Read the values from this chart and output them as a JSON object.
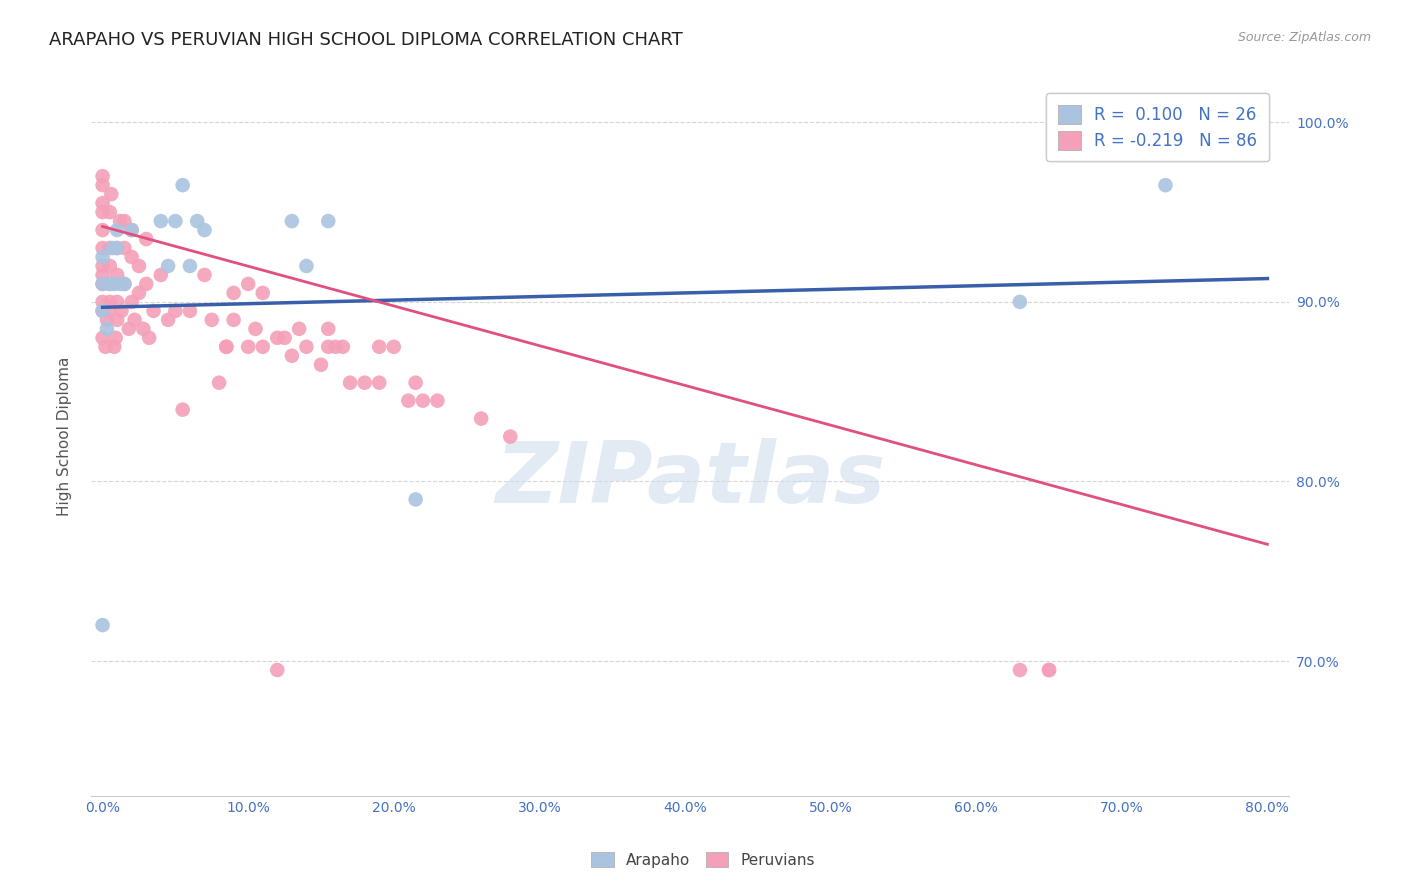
{
  "title": "ARAPAHO VS PERUVIAN HIGH SCHOOL DIPLOMA CORRELATION CHART",
  "source": "Source: ZipAtlas.com",
  "xlabel_ticks": [
    "0.0%",
    "10.0%",
    "20.0%",
    "30.0%",
    "40.0%",
    "50.0%",
    "60.0%",
    "70.0%",
    "80.0%"
  ],
  "ylabel": "High School Diploma",
  "watermark": "ZIPatlas",
  "legend_r1": "R =  0.100   N = 26",
  "legend_r2": "R = -0.219   N = 86",
  "arapaho_color": "#aac4e0",
  "peruvian_color": "#f4a0b8",
  "line_arapaho_color": "#3a5faa",
  "line_peruvian_color": "#e05080",
  "arapaho_points_x": [
    0.0,
    0.0,
    0.0,
    0.0,
    0.003,
    0.005,
    0.007,
    0.008,
    0.01,
    0.01,
    0.012,
    0.015,
    0.02,
    0.04,
    0.045,
    0.05,
    0.055,
    0.06,
    0.065,
    0.07,
    0.13,
    0.14,
    0.155,
    0.215,
    0.63,
    0.73
  ],
  "arapaho_points_y": [
    0.72,
    0.895,
    0.91,
    0.925,
    0.885,
    0.91,
    0.93,
    0.91,
    0.93,
    0.94,
    0.91,
    0.91,
    0.94,
    0.945,
    0.92,
    0.945,
    0.965,
    0.92,
    0.945,
    0.94,
    0.945,
    0.92,
    0.945,
    0.79,
    0.9,
    0.965
  ],
  "peruvian_points_x": [
    0.0,
    0.0,
    0.0,
    0.0,
    0.0,
    0.0,
    0.0,
    0.0,
    0.0,
    0.0,
    0.0,
    0.0,
    0.002,
    0.003,
    0.004,
    0.005,
    0.005,
    0.005,
    0.005,
    0.005,
    0.006,
    0.008,
    0.009,
    0.01,
    0.01,
    0.01,
    0.01,
    0.012,
    0.013,
    0.015,
    0.015,
    0.015,
    0.018,
    0.02,
    0.02,
    0.02,
    0.022,
    0.025,
    0.025,
    0.028,
    0.03,
    0.03,
    0.032,
    0.035,
    0.04,
    0.045,
    0.05,
    0.055,
    0.06,
    0.07,
    0.075,
    0.08,
    0.085,
    0.085,
    0.09,
    0.09,
    0.1,
    0.1,
    0.105,
    0.11,
    0.11,
    0.12,
    0.125,
    0.13,
    0.135,
    0.14,
    0.15,
    0.155,
    0.155,
    0.16,
    0.165,
    0.17,
    0.18,
    0.19,
    0.19,
    0.2,
    0.21,
    0.215,
    0.22,
    0.23,
    0.26,
    0.28,
    0.12,
    0.65,
    0.63,
    0.65
  ],
  "peruvian_points_y": [
    0.88,
    0.895,
    0.9,
    0.91,
    0.915,
    0.92,
    0.93,
    0.94,
    0.95,
    0.955,
    0.965,
    0.97,
    0.875,
    0.89,
    0.895,
    0.9,
    0.91,
    0.92,
    0.93,
    0.95,
    0.96,
    0.875,
    0.88,
    0.89,
    0.9,
    0.915,
    0.93,
    0.945,
    0.895,
    0.91,
    0.93,
    0.945,
    0.885,
    0.9,
    0.925,
    0.94,
    0.89,
    0.905,
    0.92,
    0.885,
    0.91,
    0.935,
    0.88,
    0.895,
    0.915,
    0.89,
    0.895,
    0.84,
    0.895,
    0.915,
    0.89,
    0.855,
    0.875,
    0.875,
    0.905,
    0.89,
    0.91,
    0.875,
    0.885,
    0.905,
    0.875,
    0.88,
    0.88,
    0.87,
    0.885,
    0.875,
    0.865,
    0.885,
    0.875,
    0.875,
    0.875,
    0.855,
    0.855,
    0.875,
    0.855,
    0.875,
    0.845,
    0.855,
    0.845,
    0.845,
    0.835,
    0.825,
    0.695,
    0.695,
    0.695,
    0.695
  ],
  "arapaho_line_x": [
    0.0,
    0.8
  ],
  "arapaho_line_y": [
    0.897,
    0.913
  ],
  "peruvian_line_x": [
    0.0,
    0.8
  ],
  "peruvian_line_y": [
    0.942,
    0.765
  ],
  "xlim": [
    -0.008,
    0.815
  ],
  "ylim": [
    0.625,
    1.025
  ],
  "y_tick_vals": [
    0.7,
    0.8,
    0.9,
    1.0
  ],
  "y_tick_labels": [
    "70.0%",
    "80.0%",
    "90.0%",
    "100.0%"
  ],
  "x_tick_vals": [
    0.0,
    0.1,
    0.2,
    0.3,
    0.4,
    0.5,
    0.6,
    0.7,
    0.8
  ],
  "background_color": "#ffffff",
  "grid_color": "#cccccc",
  "title_fontsize": 13,
  "axis_tick_fontsize": 10,
  "ylabel_fontsize": 11
}
